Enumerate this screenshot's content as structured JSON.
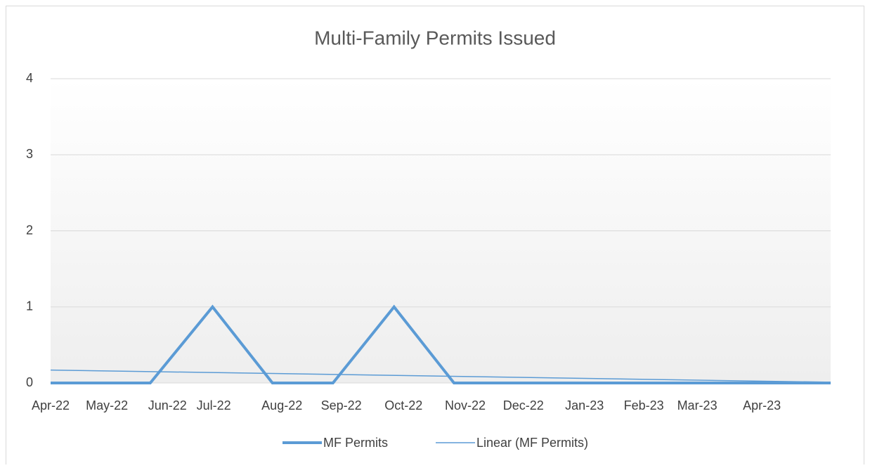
{
  "chart_data": {
    "type": "line",
    "title": "Multi-Family Permits Issued",
    "xlim": [
      0,
      13.15
    ],
    "xticks": [
      {
        "value": 0,
        "label": "Apr-22"
      },
      {
        "value": 0.95,
        "label": "May-22"
      },
      {
        "value": 1.97,
        "label": "Jun-22"
      },
      {
        "value": 2.75,
        "label": "Jul-22"
      },
      {
        "value": 3.9,
        "label": "Aug-22"
      },
      {
        "value": 4.9,
        "label": "Sep-22"
      },
      {
        "value": 5.95,
        "label": "Oct-22"
      },
      {
        "value": 6.99,
        "label": "Nov-22"
      },
      {
        "value": 7.97,
        "label": "Dec-22"
      },
      {
        "value": 9.0,
        "label": "Jan-23"
      },
      {
        "value": 10.0,
        "label": "Feb-23"
      },
      {
        "value": 10.9,
        "label": "Mar-23"
      },
      {
        "value": 11.99,
        "label": "Apr-23"
      }
    ],
    "ylim": [
      0,
      4
    ],
    "yticks": [
      0,
      1,
      2,
      3,
      4
    ],
    "grid": true,
    "legend": "bottom",
    "series": [
      {
        "name": "MF Permits",
        "color": "#5b9bd5",
        "line_width": 4,
        "x": [
          0,
          1.68,
          2.73,
          3.74,
          4.76,
          5.79,
          6.8,
          7.82,
          8.84,
          9.86,
          10.88,
          11.9,
          13.15
        ],
        "values": [
          0,
          0,
          1,
          0,
          0,
          1,
          0,
          0,
          0,
          0,
          0,
          0,
          0
        ]
      },
      {
        "name": "Linear (MF Permits)",
        "color": "#5b9bd5",
        "line_width": 1.5,
        "x": [
          0,
          13.15
        ],
        "values": [
          0.17,
          0.01
        ]
      }
    ]
  }
}
